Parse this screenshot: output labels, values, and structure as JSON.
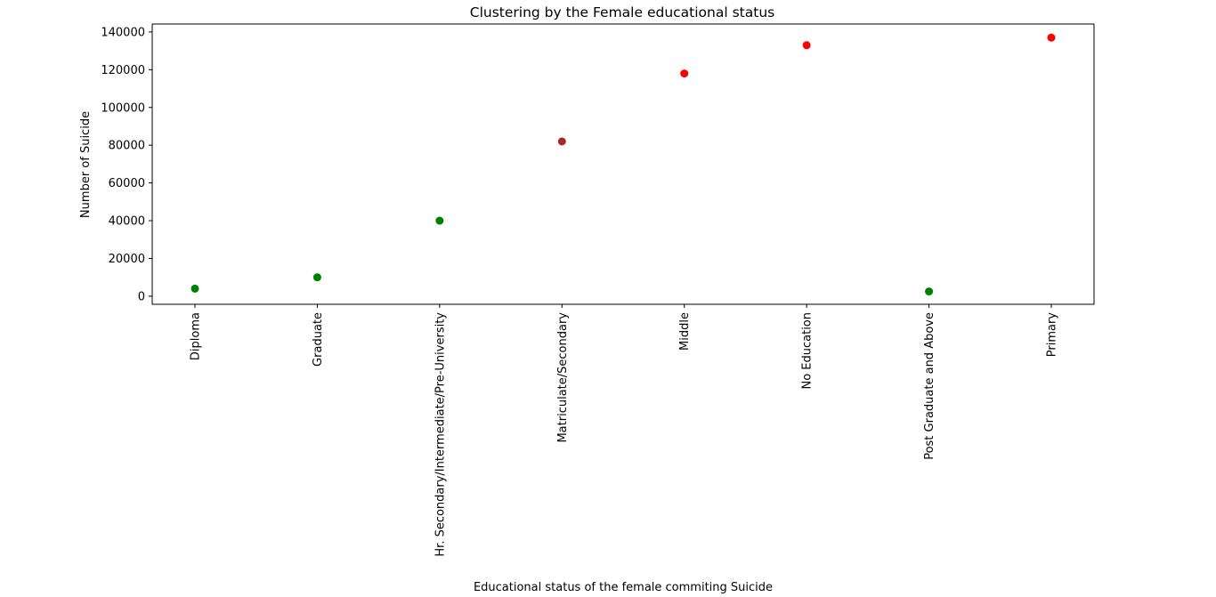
{
  "chart_data": {
    "type": "scatter",
    "title": "Clustering by the Female educational status",
    "xlabel": "Educational status of the female commiting Suicide",
    "ylabel": "Number of Suicide",
    "categories": [
      "Diploma",
      "Graduate",
      "Hr. Secondary/Intermediate/Pre-University",
      "Matriculate/Secondary",
      "Middle",
      "No Education",
      "Post Graduate and Above",
      "Primary"
    ],
    "values": [
      4000,
      10000,
      40000,
      82000,
      118000,
      133000,
      2500,
      137000
    ],
    "point_colors": [
      "#008000",
      "#008000",
      "#008000",
      "#a52a2a",
      "#ff0000",
      "#ff0000",
      "#008000",
      "#ff0000"
    ],
    "yticks": [
      0,
      20000,
      40000,
      60000,
      80000,
      100000,
      120000,
      140000
    ],
    "ytick_labels": [
      "0",
      "20000",
      "40000",
      "60000",
      "80000",
      "100000",
      "120000",
      "140000"
    ],
    "ylim": [
      -4300,
      144200
    ],
    "grid": false,
    "legend": "none"
  }
}
